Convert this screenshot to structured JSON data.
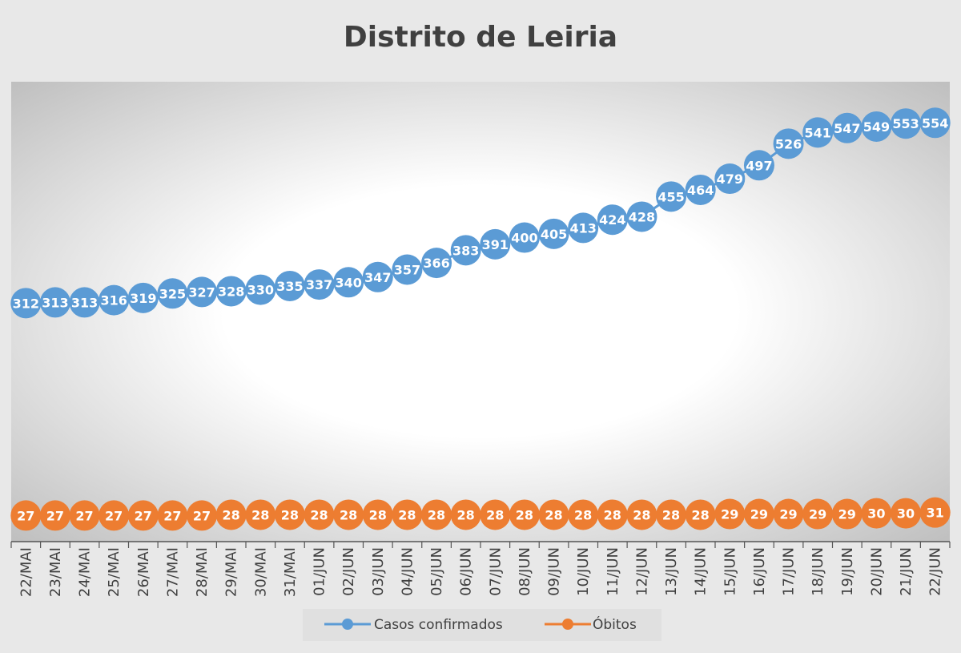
{
  "chart_data": {
    "type": "line",
    "title": "Distrito de Leiria",
    "categories": [
      "22/MAI",
      "23/MAI",
      "24/MAI",
      "25/MAI",
      "26/MAI",
      "27/MAI",
      "28/MAI",
      "29/MAI",
      "30/MAI",
      "31/MAI",
      "01/JUN",
      "02/JUN",
      "03/JUN",
      "04/JUN",
      "05/JUN",
      "06/JUN",
      "07/JUN",
      "08/JUN",
      "09/JUN",
      "10/JUN",
      "11/JUN",
      "12/JUN",
      "13/JUN",
      "14/JUN",
      "15/JUN",
      "16/JUN",
      "17/JUN",
      "18/JUN",
      "19/JUN",
      "20/JUN",
      "21/JUN",
      "22/JUN"
    ],
    "series": [
      {
        "name": "Casos confirmados",
        "color": "#5b9bd5",
        "values": [
          312,
          313,
          313,
          316,
          319,
          325,
          327,
          328,
          330,
          335,
          337,
          340,
          347,
          357,
          366,
          383,
          391,
          400,
          405,
          413,
          424,
          428,
          455,
          464,
          479,
          497,
          526,
          541,
          547,
          549,
          553,
          554
        ]
      },
      {
        "name": "Óbitos",
        "color": "#ed7d31",
        "values": [
          27,
          27,
          27,
          27,
          27,
          27,
          27,
          28,
          28,
          28,
          28,
          28,
          28,
          28,
          28,
          28,
          28,
          28,
          28,
          28,
          28,
          28,
          28,
          28,
          29,
          29,
          29,
          29,
          29,
          30,
          30,
          31
        ]
      }
    ],
    "data_labels": true,
    "grid": false,
    "legend_position": "bottom"
  }
}
